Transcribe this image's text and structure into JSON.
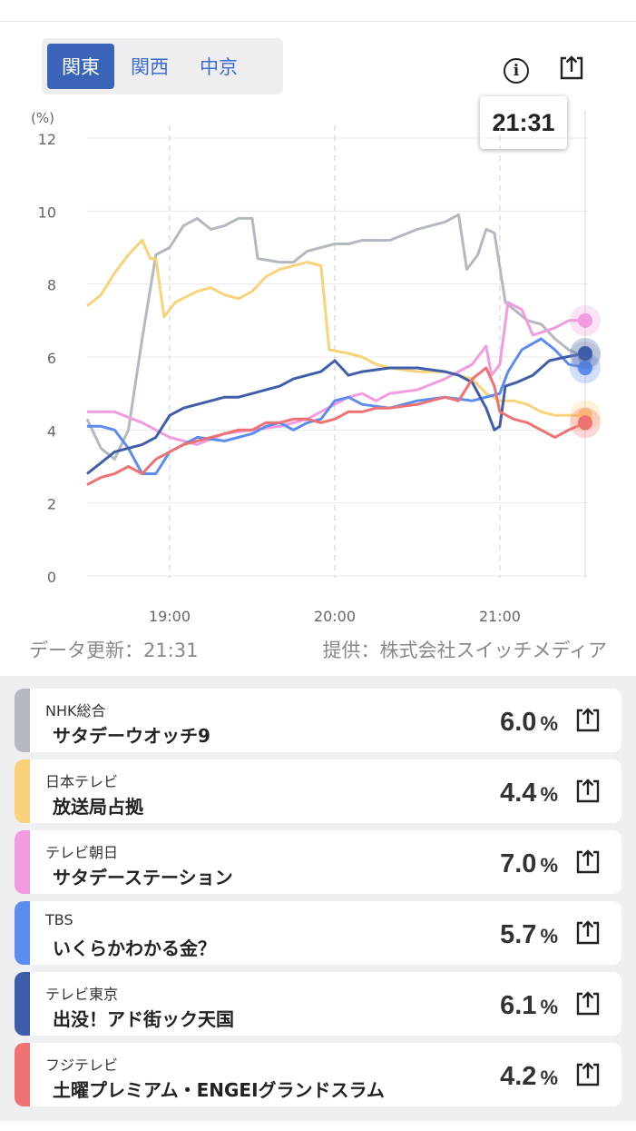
{
  "region_tabs": [
    {
      "label": "関東",
      "active": true
    },
    {
      "label": "関西",
      "active": false
    },
    {
      "label": "中京",
      "active": false
    }
  ],
  "header": {
    "info_label": "i",
    "tooltip_time": "21:31"
  },
  "icons": {
    "info": "info-circle-icon",
    "share": "share-upload-icon"
  },
  "chart_data": {
    "type": "line",
    "ylabel": "(%)",
    "ylim": [
      0,
      12
    ],
    "yticks": [
      0,
      2,
      4,
      6,
      8,
      10,
      12
    ],
    "xlim": [
      "18:30",
      "21:32"
    ],
    "xticks": [
      "19:00",
      "20:00",
      "21:00"
    ],
    "grid": true,
    "current_time": "21:31",
    "series": [
      {
        "key": "nhk",
        "color": "#b4b8c0",
        "points": [
          [
            "18:30",
            4.3
          ],
          [
            "18:35",
            3.5
          ],
          [
            "18:40",
            3.2
          ],
          [
            "18:45",
            4.0
          ],
          [
            "18:50",
            6.5
          ],
          [
            "18:55",
            8.8
          ],
          [
            "19:00",
            9.0
          ],
          [
            "19:05",
            9.6
          ],
          [
            "19:10",
            9.8
          ],
          [
            "19:15",
            9.5
          ],
          [
            "19:20",
            9.6
          ],
          [
            "19:25",
            9.8
          ],
          [
            "19:30",
            9.8
          ],
          [
            "19:32",
            8.7
          ],
          [
            "19:40",
            8.6
          ],
          [
            "19:45",
            8.6
          ],
          [
            "19:50",
            8.9
          ],
          [
            "19:55",
            9.0
          ],
          [
            "20:00",
            9.1
          ],
          [
            "20:05",
            9.1
          ],
          [
            "20:10",
            9.2
          ],
          [
            "20:20",
            9.2
          ],
          [
            "20:30",
            9.5
          ],
          [
            "20:40",
            9.7
          ],
          [
            "20:45",
            9.9
          ],
          [
            "20:48",
            8.4
          ],
          [
            "20:52",
            8.8
          ],
          [
            "20:55",
            9.5
          ],
          [
            "20:58",
            9.4
          ],
          [
            "21:02",
            7.5
          ],
          [
            "21:10",
            7.0
          ],
          [
            "21:15",
            6.9
          ],
          [
            "21:20",
            6.5
          ],
          [
            "21:25",
            6.2
          ],
          [
            "21:31",
            6.0
          ]
        ]
      },
      {
        "key": "ntv",
        "color": "#fad27a",
        "points": [
          [
            "18:30",
            7.4
          ],
          [
            "18:35",
            7.7
          ],
          [
            "18:40",
            8.3
          ],
          [
            "18:45",
            8.8
          ],
          [
            "18:50",
            9.2
          ],
          [
            "18:53",
            8.7
          ],
          [
            "18:55",
            8.7
          ],
          [
            "18:58",
            7.1
          ],
          [
            "19:02",
            7.5
          ],
          [
            "19:10",
            7.8
          ],
          [
            "19:15",
            7.9
          ],
          [
            "19:20",
            7.7
          ],
          [
            "19:25",
            7.6
          ],
          [
            "19:30",
            7.8
          ],
          [
            "19:35",
            8.2
          ],
          [
            "19:40",
            8.4
          ],
          [
            "19:45",
            8.5
          ],
          [
            "19:50",
            8.6
          ],
          [
            "19:55",
            8.5
          ],
          [
            "19:58",
            6.2
          ],
          [
            "20:05",
            6.1
          ],
          [
            "20:10",
            6.0
          ],
          [
            "20:15",
            5.8
          ],
          [
            "20:20",
            5.7
          ],
          [
            "20:30",
            5.6
          ],
          [
            "20:40",
            5.6
          ],
          [
            "20:50",
            5.4
          ],
          [
            "20:55",
            5.0
          ],
          [
            "21:00",
            4.8
          ],
          [
            "21:05",
            4.8
          ],
          [
            "21:10",
            4.7
          ],
          [
            "21:15",
            4.5
          ],
          [
            "21:20",
            4.4
          ],
          [
            "21:25",
            4.4
          ],
          [
            "21:31",
            4.4
          ]
        ]
      },
      {
        "key": "asahi",
        "color": "#f29be0",
        "points": [
          [
            "18:30",
            4.5
          ],
          [
            "18:40",
            4.5
          ],
          [
            "18:50",
            4.2
          ],
          [
            "18:55",
            4.0
          ],
          [
            "19:00",
            3.8
          ],
          [
            "19:10",
            3.6
          ],
          [
            "19:20",
            3.9
          ],
          [
            "19:30",
            4.0
          ],
          [
            "19:40",
            4.1
          ],
          [
            "19:50",
            4.3
          ],
          [
            "20:00",
            4.7
          ],
          [
            "20:05",
            4.9
          ],
          [
            "20:10",
            5.0
          ],
          [
            "20:15",
            4.8
          ],
          [
            "20:20",
            5.0
          ],
          [
            "20:30",
            5.1
          ],
          [
            "20:40",
            5.4
          ],
          [
            "20:45",
            5.6
          ],
          [
            "20:50",
            5.8
          ],
          [
            "20:55",
            6.3
          ],
          [
            "20:57",
            5.5
          ],
          [
            "21:00",
            5.8
          ],
          [
            "21:03",
            7.5
          ],
          [
            "21:08",
            7.3
          ],
          [
            "21:12",
            6.6
          ],
          [
            "21:20",
            6.8
          ],
          [
            "21:25",
            7.0
          ],
          [
            "21:31",
            7.0
          ]
        ]
      },
      {
        "key": "tbs",
        "color": "#5c8cef",
        "points": [
          [
            "18:30",
            4.1
          ],
          [
            "18:35",
            4.1
          ],
          [
            "18:40",
            4.0
          ],
          [
            "18:45",
            3.5
          ],
          [
            "18:50",
            2.8
          ],
          [
            "18:55",
            2.8
          ],
          [
            "19:00",
            3.4
          ],
          [
            "19:10",
            3.8
          ],
          [
            "19:20",
            3.7
          ],
          [
            "19:30",
            3.9
          ],
          [
            "19:35",
            4.1
          ],
          [
            "19:40",
            4.2
          ],
          [
            "19:45",
            4.0
          ],
          [
            "19:50",
            4.2
          ],
          [
            "19:55",
            4.3
          ],
          [
            "20:00",
            4.8
          ],
          [
            "20:05",
            4.9
          ],
          [
            "20:10",
            4.7
          ],
          [
            "20:20",
            4.6
          ],
          [
            "20:30",
            4.8
          ],
          [
            "20:40",
            4.9
          ],
          [
            "20:50",
            4.8
          ],
          [
            "20:55",
            4.9
          ],
          [
            "21:00",
            5.0
          ],
          [
            "21:03",
            5.6
          ],
          [
            "21:08",
            6.2
          ],
          [
            "21:15",
            6.5
          ],
          [
            "21:20",
            6.2
          ],
          [
            "21:25",
            5.8
          ],
          [
            "21:31",
            5.7
          ]
        ]
      },
      {
        "key": "tx",
        "color": "#3f5da9",
        "points": [
          [
            "18:30",
            2.8
          ],
          [
            "18:35",
            3.1
          ],
          [
            "18:40",
            3.4
          ],
          [
            "18:45",
            3.5
          ],
          [
            "18:50",
            3.6
          ],
          [
            "18:55",
            3.8
          ],
          [
            "19:00",
            4.4
          ],
          [
            "19:05",
            4.6
          ],
          [
            "19:10",
            4.7
          ],
          [
            "19:15",
            4.8
          ],
          [
            "19:20",
            4.9
          ],
          [
            "19:25",
            4.9
          ],
          [
            "19:30",
            5.0
          ],
          [
            "19:35",
            5.1
          ],
          [
            "19:40",
            5.2
          ],
          [
            "19:45",
            5.4
          ],
          [
            "19:50",
            5.5
          ],
          [
            "19:55",
            5.6
          ],
          [
            "20:00",
            5.9
          ],
          [
            "20:05",
            5.5
          ],
          [
            "20:10",
            5.6
          ],
          [
            "20:20",
            5.7
          ],
          [
            "20:30",
            5.7
          ],
          [
            "20:40",
            5.6
          ],
          [
            "20:45",
            5.5
          ],
          [
            "20:50",
            5.3
          ],
          [
            "20:55",
            4.6
          ],
          [
            "20:58",
            4.0
          ],
          [
            "21:00",
            4.1
          ],
          [
            "21:02",
            5.2
          ],
          [
            "21:06",
            5.3
          ],
          [
            "21:12",
            5.5
          ],
          [
            "21:18",
            5.9
          ],
          [
            "21:24",
            6.0
          ],
          [
            "21:31",
            6.1
          ]
        ]
      },
      {
        "key": "cx",
        "color": "#ef7173",
        "points": [
          [
            "18:30",
            2.5
          ],
          [
            "18:35",
            2.7
          ],
          [
            "18:40",
            2.8
          ],
          [
            "18:45",
            3.0
          ],
          [
            "18:50",
            2.8
          ],
          [
            "18:55",
            3.2
          ],
          [
            "19:00",
            3.4
          ],
          [
            "19:05",
            3.6
          ],
          [
            "19:10",
            3.7
          ],
          [
            "19:15",
            3.8
          ],
          [
            "19:20",
            3.9
          ],
          [
            "19:25",
            4.0
          ],
          [
            "19:30",
            4.0
          ],
          [
            "19:35",
            4.2
          ],
          [
            "19:40",
            4.2
          ],
          [
            "19:45",
            4.3
          ],
          [
            "19:50",
            4.3
          ],
          [
            "19:55",
            4.2
          ],
          [
            "20:00",
            4.3
          ],
          [
            "20:05",
            4.5
          ],
          [
            "20:10",
            4.5
          ],
          [
            "20:15",
            4.6
          ],
          [
            "20:20",
            4.6
          ],
          [
            "20:30",
            4.7
          ],
          [
            "20:40",
            4.9
          ],
          [
            "20:45",
            4.8
          ],
          [
            "20:50",
            5.4
          ],
          [
            "20:55",
            5.7
          ],
          [
            "20:58",
            5.2
          ],
          [
            "21:00",
            4.5
          ],
          [
            "21:05",
            4.3
          ],
          [
            "21:10",
            4.2
          ],
          [
            "21:15",
            4.0
          ],
          [
            "21:20",
            3.8
          ],
          [
            "21:25",
            4.0
          ],
          [
            "21:31",
            4.2
          ]
        ]
      }
    ]
  },
  "footer": {
    "updated": "データ更新：21:31",
    "provider": "提供：株式会社スイッチメディア"
  },
  "channels": [
    {
      "name": "NHK総合",
      "program": "サタデーウオッチ9",
      "value": "6.0",
      "unit": "%",
      "color": "#b4b8c0"
    },
    {
      "name": "日本テレビ",
      "program": "放送局占拠",
      "value": "4.4",
      "unit": "%",
      "color": "#fad27a"
    },
    {
      "name": "テレビ朝日",
      "program": "サタデーステーション",
      "value": "7.0",
      "unit": "%",
      "color": "#f29be0"
    },
    {
      "name": "TBS",
      "program": "いくらかわかる金？",
      "value": "5.7",
      "unit": "%",
      "color": "#5c8cef"
    },
    {
      "name": "テレビ東京",
      "program": "出没！アド街ック天国",
      "value": "6.1",
      "unit": "%",
      "color": "#3f5da9"
    },
    {
      "name": "フジテレビ",
      "program": "土曜プレミアム・ENGEIグランドスラム",
      "value": "4.2",
      "unit": "%",
      "color": "#ef7173"
    }
  ]
}
